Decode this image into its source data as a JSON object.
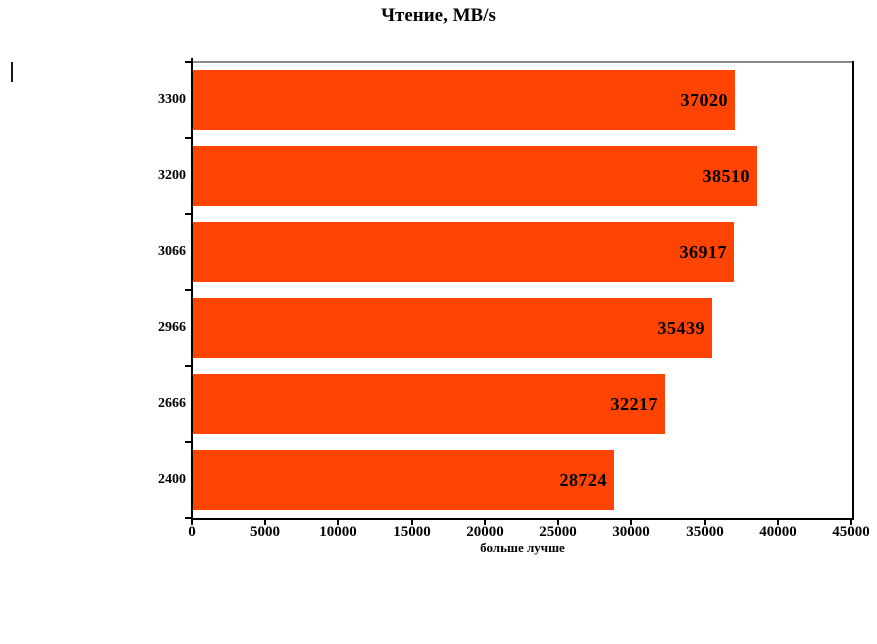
{
  "chart_data": {
    "type": "bar",
    "orientation": "horizontal",
    "title": "Чтение, MB/s",
    "categories": [
      "3300",
      "3200",
      "3066",
      "2966",
      "2666",
      "2400"
    ],
    "values": [
      37020,
      38510,
      36917,
      35439,
      32217,
      28724
    ],
    "value_labels": [
      "37020",
      "38510",
      "36917",
      "35439",
      "32217",
      "28724"
    ],
    "xlabel": "больше лучше",
    "ylabel": "",
    "xlim": [
      0,
      45000
    ],
    "x_ticks": [
      0,
      5000,
      10000,
      15000,
      20000,
      25000,
      30000,
      35000,
      40000,
      45000
    ],
    "grid": false,
    "legend": "none",
    "colors": {
      "bar": "#ff4300",
      "text": "#000000",
      "axis": "#000000",
      "frame_top": "#8c8c8c",
      "background": "#ffffff"
    }
  }
}
